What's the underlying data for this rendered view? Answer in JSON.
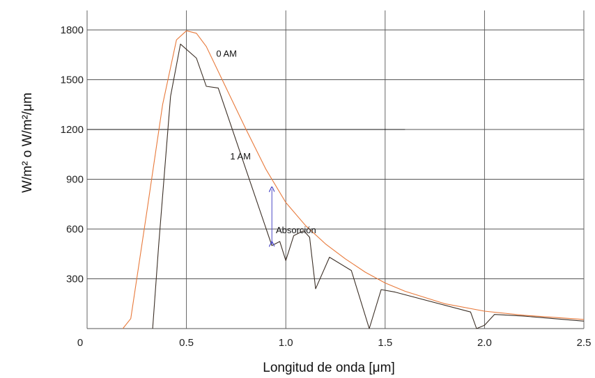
{
  "chart_data": {
    "type": "line",
    "xlabel": "Longitud de onda [μm]",
    "ylabel": "W/m² o W/m²/μm",
    "xlim": [
      0,
      2.5
    ],
    "ylim": [
      0,
      1800
    ],
    "x_ticks": [
      0.5,
      1.0,
      1.5,
      2.0,
      2.5
    ],
    "x_tick_labels": [
      "0.5",
      "1.0",
      "1.5",
      "2.0",
      "2.5"
    ],
    "y_ticks": [
      300,
      600,
      900,
      1200,
      1500,
      1800
    ],
    "y_tick_labels": [
      "300",
      "600",
      "900",
      "1200",
      "1500",
      "1800"
    ],
    "origin_label": "0",
    "grid": true,
    "series": [
      {
        "name": "0 AM",
        "color": "#e8793a",
        "x": [
          0.18,
          0.22,
          0.3,
          0.38,
          0.45,
          0.5,
          0.55,
          0.6,
          0.7,
          0.8,
          0.9,
          1.0,
          1.1,
          1.2,
          1.3,
          1.4,
          1.5,
          1.6,
          1.8,
          2.0,
          2.2,
          2.5
        ],
        "y": [
          0,
          60,
          700,
          1350,
          1740,
          1795,
          1780,
          1700,
          1450,
          1200,
          960,
          760,
          620,
          510,
          420,
          340,
          275,
          225,
          150,
          105,
          80,
          55
        ]
      },
      {
        "name": "1 AM",
        "color": "#3a2e25",
        "x": [
          0.33,
          0.36,
          0.42,
          0.47,
          0.55,
          0.6,
          0.66,
          0.93,
          0.97,
          1.0,
          1.04,
          1.09,
          1.12,
          1.15,
          1.22,
          1.33,
          1.42,
          1.48,
          1.55,
          1.93,
          1.96,
          2.0,
          2.05,
          2.2,
          2.5
        ],
        "y": [
          0,
          500,
          1400,
          1715,
          1630,
          1460,
          1450,
          500,
          525,
          410,
          560,
          590,
          550,
          240,
          430,
          350,
          0,
          235,
          220,
          100,
          0,
          20,
          85,
          75,
          45
        ]
      }
    ],
    "reference_line": {
      "y": 1200,
      "x_range": [
        0,
        1.6
      ]
    },
    "annotations": [
      {
        "text": "0 AM",
        "x": 0.65,
        "y": 1660
      },
      {
        "text": "1 AM",
        "x": 0.72,
        "y": 1040
      },
      {
        "text": "Absorción",
        "x": 0.95,
        "y": 595
      }
    ],
    "absorption_arrow": {
      "x": 0.93,
      "y_from": 510,
      "y_to": 840,
      "color": "#4a47c6"
    }
  }
}
